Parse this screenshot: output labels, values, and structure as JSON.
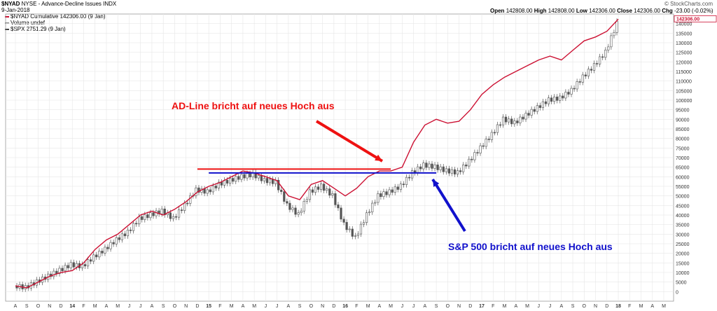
{
  "header": {
    "symbol": "$NYAD",
    "name": "NYSE - Advance-Decline Issues INDX",
    "date": "9-Jan-2018",
    "open_label": "Open",
    "open": "142808.00",
    "high_label": "High",
    "high": "142808.00",
    "low_label": "Low",
    "low": "142306.00",
    "close_label": "Close",
    "close": "142306.00",
    "chg_label": "Chg",
    "chg": "-23.00 (-0.02%)",
    "brand": "© StockCharts.com"
  },
  "legend": [
    {
      "text": "$NYAD Cumulative 142306.00 (9 Jan)",
      "color": "#cc1133"
    },
    {
      "text": "Volume undef",
      "color": "#888888"
    },
    {
      "text": "$SPX 2751.29 (9 Jan)",
      "color": "#444444"
    }
  ],
  "last_value_label": "142306.00",
  "annotations": {
    "ad_line": {
      "text": "AD-Line bricht auf neues Hoch aus",
      "color": "#ee1111"
    },
    "spx": {
      "text": "S&P 500 bricht auf neues Hoch aus",
      "color": "#1111cc"
    }
  },
  "colors": {
    "ad_line": "#cc1133",
    "candles": "#555555",
    "grid": "#e6e6e6",
    "red_arrow": "#ee1111",
    "blue_arrow": "#1111cc"
  },
  "chart_data": {
    "type": "line",
    "title": "$NYAD NYSE - Advance-Decline Issues INDX",
    "ylim": [
      -5000,
      145000
    ],
    "y_ticks": [
      0,
      5000,
      10000,
      15000,
      20000,
      25000,
      30000,
      35000,
      40000,
      45000,
      50000,
      55000,
      60000,
      65000,
      70000,
      75000,
      80000,
      85000,
      90000,
      95000,
      100000,
      105000,
      110000,
      115000,
      120000,
      125000,
      130000,
      135000,
      140000
    ],
    "y_tick_labels": [
      "0",
      "5000",
      "10000",
      "15000",
      "20000",
      "25000",
      "30000",
      "35000",
      "40000",
      "45000",
      "50000",
      "55000",
      "60000",
      "65000",
      "70000",
      "75000",
      "80000",
      "85000",
      "90000",
      "95000",
      "100000",
      "105000",
      "110000",
      "115000",
      "120000",
      "125000",
      "130000",
      "135000",
      "140000"
    ],
    "x_ticks": [
      "A",
      "S",
      "O",
      "N",
      "D",
      "14",
      "F",
      "M",
      "A",
      "M",
      "J",
      "J",
      "A",
      "S",
      "O",
      "N",
      "D",
      "15",
      "F",
      "M",
      "A",
      "M",
      "J",
      "J",
      "A",
      "S",
      "O",
      "N",
      "D",
      "16",
      "F",
      "M",
      "A",
      "M",
      "J",
      "J",
      "A",
      "S",
      "O",
      "N",
      "D",
      "17",
      "F",
      "M",
      "A",
      "M",
      "J",
      "J",
      "A",
      "S",
      "O",
      "N",
      "D",
      "18",
      "F",
      "M",
      "A",
      "M"
    ],
    "x_range": [
      "2013-08",
      "2018-05"
    ],
    "series": [
      {
        "name": "$NYAD Cumulative",
        "style": "line",
        "points": [
          [
            "2013-08",
            3000
          ],
          [
            "2013-09",
            2000
          ],
          [
            "2013-10",
            5000
          ],
          [
            "2013-11",
            8000
          ],
          [
            "2013-12",
            10000
          ],
          [
            "2014-01",
            11000
          ],
          [
            "2014-02",
            15000
          ],
          [
            "2014-03",
            22000
          ],
          [
            "2014-04",
            27000
          ],
          [
            "2014-05",
            30000
          ],
          [
            "2014-06",
            35000
          ],
          [
            "2014-07",
            40000
          ],
          [
            "2014-08",
            42000
          ],
          [
            "2014-09",
            40000
          ],
          [
            "2014-10",
            43000
          ],
          [
            "2014-11",
            47000
          ],
          [
            "2014-12",
            52000
          ],
          [
            "2015-01",
            55000
          ],
          [
            "2015-02",
            57000
          ],
          [
            "2015-03",
            60000
          ],
          [
            "2015-04",
            63000
          ],
          [
            "2015-05",
            62000
          ],
          [
            "2015-06",
            60000
          ],
          [
            "2015-07",
            58000
          ],
          [
            "2015-08",
            50000
          ],
          [
            "2015-09",
            48000
          ],
          [
            "2015-10",
            56000
          ],
          [
            "2015-11",
            58000
          ],
          [
            "2015-12",
            54000
          ],
          [
            "2016-01",
            50000
          ],
          [
            "2016-02",
            54000
          ],
          [
            "2016-03",
            60000
          ],
          [
            "2016-04",
            63000
          ],
          [
            "2016-05",
            63000
          ],
          [
            "2016-06",
            65000
          ],
          [
            "2016-07",
            78000
          ],
          [
            "2016-08",
            87000
          ],
          [
            "2016-09",
            90000
          ],
          [
            "2016-10",
            88000
          ],
          [
            "2016-11",
            89000
          ],
          [
            "2016-12",
            95000
          ],
          [
            "2017-01",
            103000
          ],
          [
            "2017-02",
            108000
          ],
          [
            "2017-03",
            112000
          ],
          [
            "2017-04",
            115000
          ],
          [
            "2017-05",
            118000
          ],
          [
            "2017-06",
            121000
          ],
          [
            "2017-07",
            123000
          ],
          [
            "2017-08",
            121000
          ],
          [
            "2017-09",
            126000
          ],
          [
            "2017-10",
            131000
          ],
          [
            "2017-11",
            133000
          ],
          [
            "2017-12",
            136000
          ],
          [
            "2018-01",
            142306
          ]
        ]
      },
      {
        "name": "$SPX",
        "style": "candlestick",
        "points": [
          [
            "2013-08",
            3000
          ],
          [
            "2013-09",
            2000
          ],
          [
            "2013-10",
            5000
          ],
          [
            "2013-11",
            8000
          ],
          [
            "2013-12",
            11000
          ],
          [
            "2014-01",
            14000
          ],
          [
            "2014-02",
            13000
          ],
          [
            "2014-03",
            18000
          ],
          [
            "2014-04",
            22000
          ],
          [
            "2014-05",
            27000
          ],
          [
            "2014-06",
            31000
          ],
          [
            "2014-07",
            38000
          ],
          [
            "2014-08",
            40000
          ],
          [
            "2014-09",
            42000
          ],
          [
            "2014-10",
            38000
          ],
          [
            "2014-11",
            45000
          ],
          [
            "2014-12",
            53000
          ],
          [
            "2015-01",
            52000
          ],
          [
            "2015-02",
            56000
          ],
          [
            "2015-03",
            58000
          ],
          [
            "2015-04",
            60000
          ],
          [
            "2015-05",
            61000
          ],
          [
            "2015-06",
            58000
          ],
          [
            "2015-07",
            57000
          ],
          [
            "2015-08",
            45000
          ],
          [
            "2015-09",
            40000
          ],
          [
            "2015-10",
            52000
          ],
          [
            "2015-11",
            55000
          ],
          [
            "2015-12",
            50000
          ],
          [
            "2016-01",
            35000
          ],
          [
            "2016-02",
            28000
          ],
          [
            "2016-03",
            40000
          ],
          [
            "2016-04",
            50000
          ],
          [
            "2016-05",
            52000
          ],
          [
            "2016-06",
            55000
          ],
          [
            "2016-07",
            62000
          ],
          [
            "2016-08",
            66000
          ],
          [
            "2016-09",
            65000
          ],
          [
            "2016-10",
            63000
          ],
          [
            "2016-11",
            62000
          ],
          [
            "2016-12",
            68000
          ],
          [
            "2017-01",
            75000
          ],
          [
            "2017-02",
            82000
          ],
          [
            "2017-03",
            90000
          ],
          [
            "2017-04",
            88000
          ],
          [
            "2017-05",
            92000
          ],
          [
            "2017-06",
            96000
          ],
          [
            "2017-07",
            100000
          ],
          [
            "2017-08",
            101000
          ],
          [
            "2017-09",
            105000
          ],
          [
            "2017-10",
            112000
          ],
          [
            "2017-11",
            118000
          ],
          [
            "2017-12",
            125000
          ],
          [
            "2018-01",
            140000
          ]
        ]
      }
    ],
    "reference_lines": [
      {
        "series": "$NYAD Cumulative",
        "color": "#ee1111",
        "y": 64000,
        "x_from": "2014-12",
        "x_to": "2016-05"
      },
      {
        "series": "$SPX",
        "color": "#1111cc",
        "y": 62000,
        "x_from": "2015-01",
        "x_to": "2016-09"
      }
    ],
    "grid": true,
    "legend_position": "top-left"
  }
}
